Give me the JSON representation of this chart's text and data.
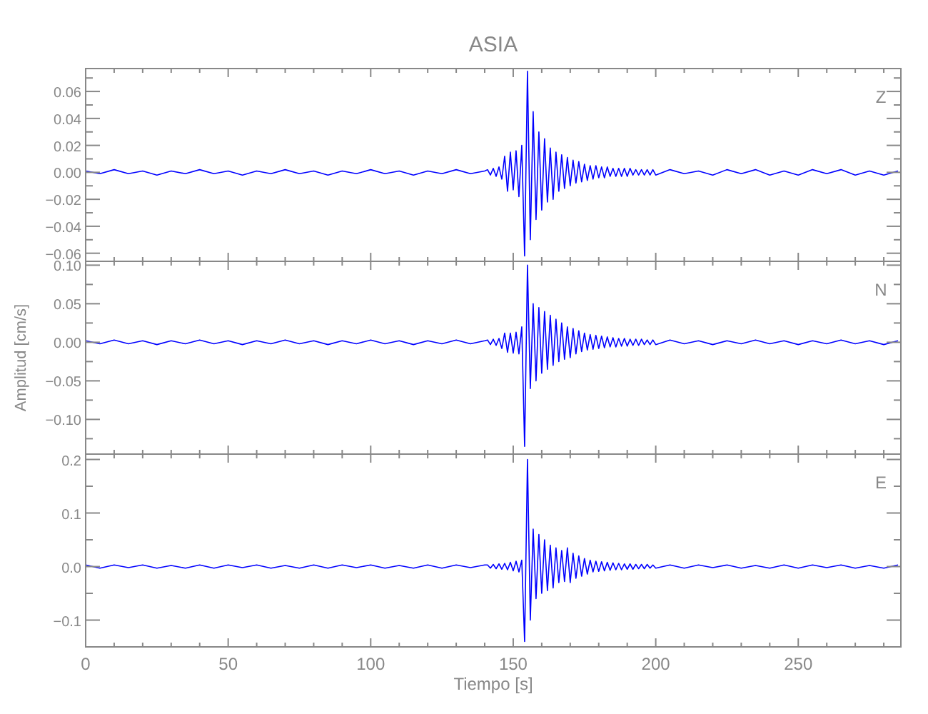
{
  "chart_data": [
    {
      "type": "line",
      "title": "ASIA",
      "tick_labels": "y",
      "xlim": [
        0,
        286
      ],
      "ylim": [
        -0.066,
        0.077
      ],
      "xticks": [
        0,
        {
          "value": 10,
          "label": null
        },
        {
          "value": 20,
          "label": null
        },
        {
          "value": 30,
          "label": null
        },
        {
          "value": 40,
          "label": null
        },
        50,
        {
          "value": 60,
          "label": null
        },
        {
          "value": 70,
          "label": null
        },
        {
          "value": 80,
          "label": null
        },
        {
          "value": 90,
          "label": null
        },
        100,
        {
          "value": 110,
          "label": null
        },
        {
          "value": 120,
          "label": null
        },
        {
          "value": 130,
          "label": null
        },
        {
          "value": 140,
          "label": null
        },
        150,
        {
          "value": 160,
          "label": null
        },
        {
          "value": 170,
          "label": null
        },
        {
          "value": 180,
          "label": null
        },
        {
          "value": 190,
          "label": null
        },
        200,
        {
          "value": 210,
          "label": null
        },
        {
          "value": 220,
          "label": null
        },
        {
          "value": 230,
          "label": null
        },
        {
          "value": 240,
          "label": null
        },
        250,
        {
          "value": 260,
          "label": null
        },
        {
          "value": 270,
          "label": null
        },
        {
          "value": 280,
          "label": null
        }
      ],
      "yticks": [
        {
          "value": -0.06,
          "label": "−0.06"
        },
        {
          "value": -0.05,
          "label": null
        },
        {
          "value": -0.04,
          "label": "−0.04"
        },
        {
          "value": -0.03,
          "label": null
        },
        {
          "value": -0.02,
          "label": "−0.02"
        },
        {
          "value": -0.01,
          "label": null
        },
        {
          "value": 0,
          "label": "0.00"
        },
        {
          "value": 0.01,
          "label": null
        },
        {
          "value": 0.02,
          "label": "0.02"
        },
        {
          "value": 0.03,
          "label": null
        },
        {
          "value": 0.04,
          "label": "0.04"
        },
        {
          "value": 0.05,
          "label": null
        },
        {
          "value": 0.06,
          "label": "0.06"
        },
        {
          "value": 0.07,
          "label": null
        }
      ],
      "x": [
        0,
        5,
        10,
        15,
        20,
        25,
        30,
        35,
        40,
        45,
        50,
        55,
        60,
        65,
        70,
        75,
        80,
        85,
        90,
        95,
        100,
        105,
        110,
        115,
        120,
        125,
        130,
        135,
        140,
        141,
        142,
        143,
        144,
        145,
        146,
        147,
        148,
        149,
        150,
        151,
        152,
        153,
        154,
        155,
        156,
        157,
        158,
        159,
        160,
        161,
        162,
        163,
        164,
        165,
        166,
        167,
        168,
        169,
        170,
        171,
        172,
        173,
        174,
        175,
        176,
        177,
        178,
        179,
        180,
        181,
        182,
        183,
        184,
        185,
        186,
        187,
        188,
        189,
        190,
        191,
        192,
        193,
        194,
        195,
        196,
        197,
        198,
        199,
        200,
        205,
        210,
        215,
        220,
        225,
        230,
        235,
        240,
        245,
        250,
        255,
        260,
        265,
        270,
        275,
        280,
        285
      ],
      "series": [
        {
          "name": "Z",
          "color": "#0000ff",
          "values": [
            0.001,
            -0.001,
            0.002,
            -0.001,
            0.001,
            -0.002,
            0.001,
            -0.001,
            0.002,
            -0.001,
            0.001,
            -0.002,
            0.001,
            -0.001,
            0.002,
            -0.001,
            0.001,
            -0.002,
            0.001,
            -0.001,
            0.002,
            -0.001,
            0.001,
            -0.002,
            0.001,
            -0.001,
            0.002,
            -0.001,
            0.001,
            0.002,
            -0.002,
            0.003,
            -0.003,
            0.004,
            -0.005,
            0.012,
            -0.014,
            0.015,
            -0.013,
            0.016,
            -0.018,
            0.02,
            -0.062,
            0.075,
            -0.05,
            0.045,
            -0.035,
            0.03,
            -0.028,
            0.025,
            -0.022,
            0.018,
            -0.02,
            0.015,
            -0.014,
            0.013,
            -0.012,
            0.011,
            -0.01,
            0.009,
            -0.008,
            0.008,
            -0.007,
            0.006,
            -0.006,
            0.005,
            -0.005,
            0.005,
            -0.004,
            0.004,
            -0.004,
            0.004,
            -0.003,
            0.003,
            -0.003,
            0.003,
            -0.003,
            0.003,
            -0.003,
            0.003,
            -0.002,
            0.002,
            -0.002,
            0.002,
            -0.002,
            0.002,
            -0.002,
            0.002,
            -0.002,
            0.002,
            -0.001,
            0.001,
            -0.002,
            0.002,
            -0.001,
            0.002,
            -0.002,
            0.001,
            -0.002,
            0.002,
            -0.001,
            0.002,
            -0.002,
            0.001,
            -0.002,
            0.001
          ]
        }
      ]
    },
    {
      "type": "line",
      "ylabel": "Amplitud [cm/s]",
      "tick_labels": "y",
      "xlim": [
        0,
        286
      ],
      "ylim": [
        -0.145,
        0.105
      ],
      "xticks": [
        0,
        {
          "value": 10,
          "label": null
        },
        {
          "value": 20,
          "label": null
        },
        {
          "value": 30,
          "label": null
        },
        {
          "value": 40,
          "label": null
        },
        50,
        {
          "value": 60,
          "label": null
        },
        {
          "value": 70,
          "label": null
        },
        {
          "value": 80,
          "label": null
        },
        {
          "value": 90,
          "label": null
        },
        100,
        {
          "value": 110,
          "label": null
        },
        {
          "value": 120,
          "label": null
        },
        {
          "value": 130,
          "label": null
        },
        {
          "value": 140,
          "label": null
        },
        150,
        {
          "value": 160,
          "label": null
        },
        {
          "value": 170,
          "label": null
        },
        {
          "value": 180,
          "label": null
        },
        {
          "value": 190,
          "label": null
        },
        200,
        {
          "value": 210,
          "label": null
        },
        {
          "value": 220,
          "label": null
        },
        {
          "value": 230,
          "label": null
        },
        {
          "value": 240,
          "label": null
        },
        250,
        {
          "value": 260,
          "label": null
        },
        {
          "value": 270,
          "label": null
        },
        {
          "value": 280,
          "label": null
        }
      ],
      "yticks": [
        {
          "value": -0.125,
          "label": null
        },
        {
          "value": -0.1,
          "label": "−0.10"
        },
        {
          "value": -0.075,
          "label": null
        },
        {
          "value": -0.05,
          "label": "−0.05"
        },
        {
          "value": -0.025,
          "label": null
        },
        {
          "value": 0,
          "label": "0.00"
        },
        {
          "value": 0.025,
          "label": null
        },
        {
          "value": 0.05,
          "label": "0.05"
        },
        {
          "value": 0.075,
          "label": null
        },
        {
          "value": 0.1,
          "label": "0.10"
        }
      ],
      "x": [
        0,
        5,
        10,
        15,
        20,
        25,
        30,
        35,
        40,
        45,
        50,
        55,
        60,
        65,
        70,
        75,
        80,
        85,
        90,
        95,
        100,
        105,
        110,
        115,
        120,
        125,
        130,
        135,
        140,
        141,
        142,
        143,
        144,
        145,
        146,
        147,
        148,
        149,
        150,
        151,
        152,
        153,
        154,
        155,
        156,
        157,
        158,
        159,
        160,
        161,
        162,
        163,
        164,
        165,
        166,
        167,
        168,
        169,
        170,
        171,
        172,
        173,
        174,
        175,
        176,
        177,
        178,
        179,
        180,
        181,
        182,
        183,
        184,
        185,
        186,
        187,
        188,
        189,
        190,
        191,
        192,
        193,
        194,
        195,
        196,
        197,
        198,
        199,
        200,
        205,
        210,
        215,
        220,
        225,
        230,
        235,
        240,
        245,
        250,
        255,
        260,
        265,
        270,
        275,
        280,
        285
      ],
      "series": [
        {
          "name": "N",
          "color": "#0000ff",
          "values": [
            0.002,
            -0.002,
            0.003,
            -0.002,
            0.002,
            -0.003,
            0.002,
            -0.002,
            0.003,
            -0.002,
            0.002,
            -0.003,
            0.002,
            -0.002,
            0.003,
            -0.002,
            0.002,
            -0.003,
            0.002,
            -0.002,
            0.003,
            -0.002,
            0.002,
            -0.003,
            0.002,
            -0.002,
            0.003,
            -0.002,
            0.002,
            0.003,
            -0.003,
            0.004,
            -0.004,
            0.005,
            -0.008,
            0.012,
            -0.013,
            0.012,
            -0.014,
            0.013,
            -0.015,
            0.02,
            -0.135,
            0.1,
            -0.06,
            0.05,
            -0.05,
            0.045,
            -0.04,
            0.04,
            -0.035,
            0.035,
            -0.03,
            0.03,
            -0.025,
            0.025,
            -0.022,
            0.02,
            -0.02,
            0.018,
            -0.015,
            0.015,
            -0.012,
            0.012,
            -0.01,
            0.01,
            -0.009,
            0.009,
            -0.008,
            0.008,
            -0.007,
            0.007,
            -0.006,
            0.006,
            -0.006,
            0.005,
            -0.005,
            0.005,
            -0.005,
            0.004,
            -0.004,
            0.004,
            -0.004,
            0.004,
            -0.003,
            0.003,
            -0.003,
            0.003,
            -0.003,
            0.003,
            -0.002,
            0.002,
            -0.003,
            0.002,
            -0.002,
            0.003,
            -0.002,
            0.002,
            -0.003,
            0.002,
            -0.002,
            0.003,
            -0.002,
            0.002,
            -0.003,
            0.002
          ]
        }
      ]
    },
    {
      "type": "line",
      "xlabel": "Tiempo [s]",
      "xlim": [
        0,
        286
      ],
      "ylim": [
        -0.15,
        0.21
      ],
      "xticks": [
        0,
        {
          "value": 10,
          "label": null
        },
        {
          "value": 20,
          "label": null
        },
        {
          "value": 30,
          "label": null
        },
        {
          "value": 40,
          "label": null
        },
        50,
        {
          "value": 60,
          "label": null
        },
        {
          "value": 70,
          "label": null
        },
        {
          "value": 80,
          "label": null
        },
        {
          "value": 90,
          "label": null
        },
        100,
        {
          "value": 110,
          "label": null
        },
        {
          "value": 120,
          "label": null
        },
        {
          "value": 130,
          "label": null
        },
        {
          "value": 140,
          "label": null
        },
        150,
        {
          "value": 160,
          "label": null
        },
        {
          "value": 170,
          "label": null
        },
        {
          "value": 180,
          "label": null
        },
        {
          "value": 190,
          "label": null
        },
        200,
        {
          "value": 210,
          "label": null
        },
        {
          "value": 220,
          "label": null
        },
        {
          "value": 230,
          "label": null
        },
        {
          "value": 240,
          "label": null
        },
        250,
        {
          "value": 260,
          "label": null
        },
        {
          "value": 270,
          "label": null
        },
        {
          "value": 280,
          "label": null
        }
      ],
      "yticks": [
        {
          "value": -0.1,
          "label": "−0.1"
        },
        {
          "value": -0.05,
          "label": null
        },
        {
          "value": 0,
          "label": "0.0"
        },
        {
          "value": 0.05,
          "label": null
        },
        {
          "value": 0.1,
          "label": "0.1"
        },
        {
          "value": 0.15,
          "label": null
        },
        {
          "value": 0.2,
          "label": "0.2"
        }
      ],
      "x": [
        0,
        5,
        10,
        15,
        20,
        25,
        30,
        35,
        40,
        45,
        50,
        55,
        60,
        65,
        70,
        75,
        80,
        85,
        90,
        95,
        100,
        105,
        110,
        115,
        120,
        125,
        130,
        135,
        140,
        141,
        142,
        143,
        144,
        145,
        146,
        147,
        148,
        149,
        150,
        151,
        152,
        153,
        154,
        155,
        156,
        157,
        158,
        159,
        160,
        161,
        162,
        163,
        164,
        165,
        166,
        167,
        168,
        169,
        170,
        171,
        172,
        173,
        174,
        175,
        176,
        177,
        178,
        179,
        180,
        181,
        182,
        183,
        184,
        185,
        186,
        187,
        188,
        189,
        190,
        191,
        192,
        193,
        194,
        195,
        196,
        197,
        198,
        199,
        200,
        205,
        210,
        215,
        220,
        225,
        230,
        235,
        240,
        245,
        250,
        255,
        260,
        265,
        270,
        275,
        280,
        285
      ],
      "series": [
        {
          "name": "E",
          "color": "#0000ff",
          "values": [
            0.003,
            -0.003,
            0.003,
            -0.002,
            0.003,
            -0.003,
            0.002,
            -0.003,
            0.003,
            -0.003,
            0.003,
            -0.002,
            0.003,
            -0.003,
            0.002,
            -0.003,
            0.003,
            -0.003,
            0.003,
            -0.002,
            0.003,
            -0.003,
            0.002,
            -0.003,
            0.003,
            -0.003,
            0.003,
            -0.002,
            0.003,
            0.003,
            -0.003,
            0.004,
            -0.004,
            0.005,
            -0.005,
            0.006,
            -0.006,
            0.008,
            -0.008,
            0.01,
            -0.01,
            0.012,
            -0.14,
            0.2,
            -0.1,
            0.07,
            -0.06,
            0.06,
            -0.05,
            0.05,
            -0.045,
            0.04,
            -0.04,
            0.035,
            -0.03,
            0.03,
            -0.028,
            0.035,
            -0.03,
            0.025,
            -0.022,
            0.02,
            -0.018,
            0.015,
            -0.014,
            0.012,
            -0.01,
            0.01,
            -0.009,
            0.009,
            -0.008,
            0.008,
            -0.007,
            0.007,
            -0.006,
            0.006,
            -0.006,
            0.005,
            -0.005,
            0.005,
            -0.005,
            0.004,
            -0.004,
            0.004,
            -0.004,
            0.004,
            -0.003,
            0.003,
            -0.003,
            0.003,
            -0.003,
            0.003,
            -0.002,
            0.003,
            -0.003,
            0.002,
            -0.003,
            0.003,
            -0.003,
            0.003,
            -0.002,
            0.003,
            -0.003,
            0.002,
            -0.003,
            0.003
          ]
        }
      ]
    }
  ]
}
